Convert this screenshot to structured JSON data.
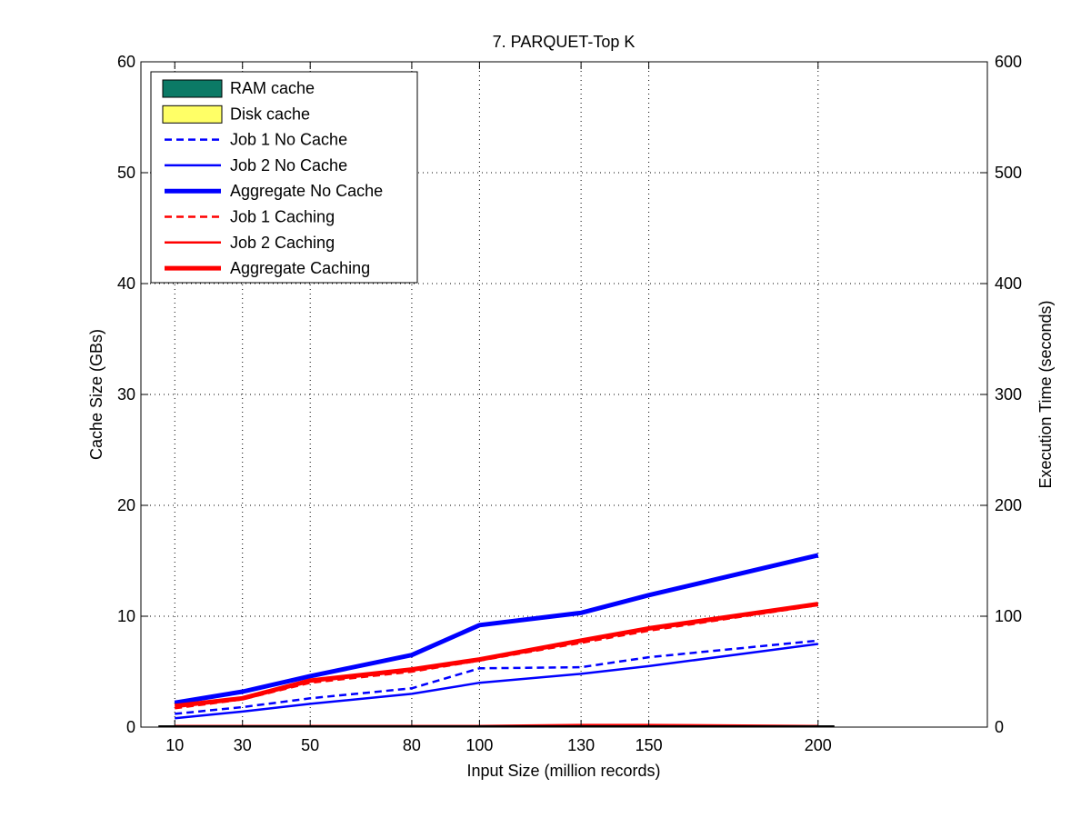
{
  "chart_data": {
    "type": "line",
    "title": "7. PARQUET-Top K",
    "xlabel": "Input Size (million records)",
    "ylabel_left": "Cache Size (GBs)",
    "ylabel_right": "Execution Time (seconds)",
    "x": [
      10,
      30,
      50,
      80,
      100,
      130,
      150,
      200
    ],
    "x_ticks": [
      "10",
      "30",
      "50",
      "80",
      "100",
      "130",
      "150",
      "200"
    ],
    "xlim": [
      0,
      250
    ],
    "ylim_left": [
      0,
      60
    ],
    "ylim_right": [
      0,
      600
    ],
    "left_ticks": [
      "0",
      "10",
      "20",
      "30",
      "40",
      "50",
      "60"
    ],
    "right_ticks": [
      "0",
      "100",
      "200",
      "300",
      "400",
      "500",
      "600"
    ],
    "grid": true,
    "legend_position": "top-left",
    "series": [
      {
        "name": "RAM cache",
        "kind": "bar",
        "axis": "left",
        "color": "#0b7a66",
        "values": [
          0,
          0,
          0,
          0,
          0,
          0,
          0,
          0
        ]
      },
      {
        "name": "Disk cache",
        "kind": "bar",
        "axis": "left",
        "color": "#ffff66",
        "values": [
          0,
          0,
          0,
          0,
          0,
          0,
          0,
          0
        ]
      },
      {
        "name": "Job 1 No Cache",
        "kind": "line",
        "axis": "right",
        "color": "#0000ff",
        "style": "dashed",
        "width": "thin",
        "values": [
          12,
          18,
          26,
          35,
          53,
          54,
          63,
          78
        ]
      },
      {
        "name": "Job 2 No Cache",
        "kind": "line",
        "axis": "right",
        "color": "#0000ff",
        "style": "solid",
        "width": "thin",
        "values": [
          8,
          14,
          21,
          30,
          40,
          48,
          55,
          75
        ]
      },
      {
        "name": "Aggregate No Cache",
        "kind": "line",
        "axis": "right",
        "color": "#0000ff",
        "style": "solid",
        "width": "thick",
        "values": [
          22,
          32,
          46,
          65,
          92,
          103,
          119,
          155
        ]
      },
      {
        "name": "Job 1 Caching",
        "kind": "line",
        "axis": "right",
        "color": "#ff0000",
        "style": "dashed",
        "width": "thin",
        "values": [
          17,
          25,
          40,
          50,
          60,
          76,
          87,
          110
        ]
      },
      {
        "name": "Job 2 Caching",
        "kind": "line",
        "axis": "right",
        "color": "#ff0000",
        "style": "solid",
        "width": "thin",
        "values": [
          1,
          1,
          1,
          1,
          1,
          2,
          2,
          1
        ]
      },
      {
        "name": "Aggregate Caching",
        "kind": "line",
        "axis": "right",
        "color": "#ff0000",
        "style": "solid",
        "width": "thick",
        "values": [
          19,
          26,
          42,
          52,
          61,
          78,
          89,
          111
        ]
      }
    ]
  }
}
